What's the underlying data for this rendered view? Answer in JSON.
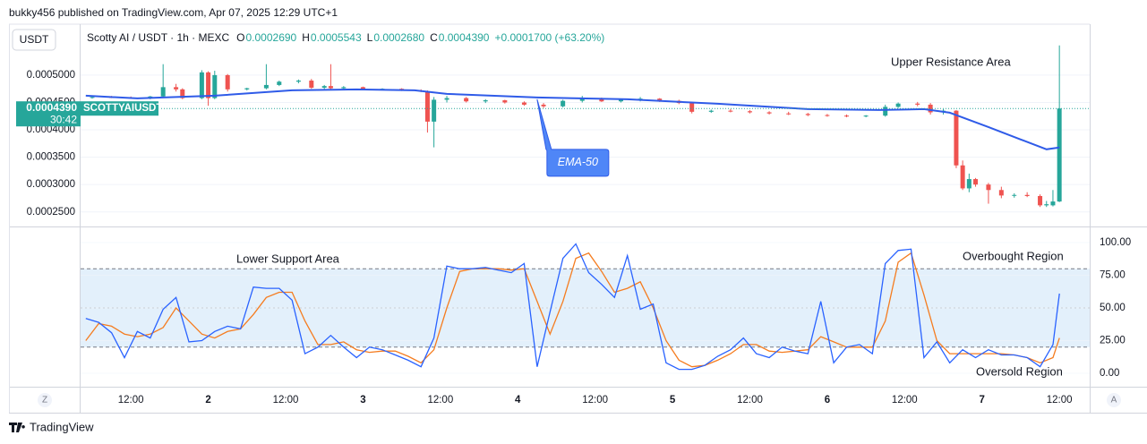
{
  "header": {
    "publisher": "bukky456 published on TradingView.com, Apr 07, 2025 12:29 UTC+1",
    "currency_button": "USDT",
    "logo": "TradingView",
    "left_button": "Z",
    "right_button": "A"
  },
  "chart_data": [
    {
      "type": "candlestick",
      "title": "Scotty AI / USDT · 1h · MEXC",
      "ohlc": [
        {
          "label": "O",
          "value": "0.0002690"
        },
        {
          "label": "H",
          "value": "0.0005543"
        },
        {
          "label": "L",
          "value": "0.0002680"
        },
        {
          "label": "C",
          "value": "0.0004390"
        }
      ],
      "change": "+0.0001700 (+63.20%)",
      "last_price_label": "0.0004390",
      "countdown": "30:42",
      "symbol_tag": "SCOTTYAIUSDT",
      "annotations": [
        "Upper Resistance Area"
      ],
      "up_color": "#26a69a",
      "down_color": "#ef5350",
      "xlim": [
        4.2,
        160.7
      ],
      "ylim": [
        0.000225,
        0.0005915
      ],
      "yticks": [
        {
          "value": 0.0005,
          "label": "0.0005000"
        },
        {
          "value": 0.00045,
          "label": "0.0004500"
        },
        {
          "value": 0.0004,
          "label": "0.0004000"
        },
        {
          "value": 0.00035,
          "label": "0.0003500"
        },
        {
          "value": 0.0003,
          "label": "0.0003000"
        },
        {
          "value": 0.00025,
          "label": "0.0002500"
        }
      ],
      "grid": true,
      "x": [
        6,
        9,
        12,
        15,
        17,
        19,
        20,
        23,
        24,
        25,
        27,
        30,
        33,
        35,
        38,
        40,
        42,
        43,
        45,
        48,
        51,
        54,
        57,
        58,
        59,
        61,
        64,
        67,
        70,
        73,
        76,
        79,
        82,
        85,
        88,
        91,
        94,
        97,
        99,
        102,
        105,
        108,
        111,
        114,
        117,
        120,
        123,
        126,
        129,
        131,
        134,
        136,
        138,
        140,
        141,
        142,
        143,
        145,
        147,
        149,
        151,
        153,
        154,
        155,
        156
      ],
      "open": [
        0.000459,
        0.00046,
        0.000459,
        0.000458,
        0.000461,
        0.000478,
        0.000474,
        0.000458,
        0.000505,
        0.000458,
        0.0005,
        0.000474,
        0.000476,
        0.000482,
        0.000488,
        0.00049,
        0.000477,
        0.00048,
        0.000476,
        0.000478,
        0.000474,
        0.000475,
        0.000472,
        0.00047,
        0.000415,
        0.000455,
        0.000458,
        0.000452,
        0.000454,
        0.00045,
        0.000446,
        0.000443,
        0.000453,
        0.000457,
        0.000452,
        0.000455,
        0.000457,
        0.000453,
        0.000449,
        0.000433,
        0.000435,
        0.000434,
        0.000432,
        0.00043,
        0.000429,
        0.000427,
        0.000426,
        0.000425,
        0.000426,
        0.000442,
        0.000448,
        0.000446,
        0.000432,
        0.000435,
        0.000335,
        0.000293,
        0.00031,
        0.0003,
        0.00029,
        0.00028,
        0.000281,
        0.000279,
        0.000262,
        0.000262,
        0.000269
      ],
      "high": [
        0.000461,
        0.000462,
        0.000461,
        0.000462,
        0.00052,
        0.000484,
        0.000476,
        0.000509,
        0.000507,
        0.000508,
        0.000502,
        0.000477,
        0.00052,
        0.00049,
        0.000492,
        0.000493,
        0.000482,
        0.00052,
        0.00048,
        0.000479,
        0.000476,
        0.000476,
        0.000474,
        0.000472,
        0.00046,
        0.000462,
        0.00046,
        0.000456,
        0.000455,
        0.000452,
        0.000449,
        0.000455,
        0.000462,
        0.000459,
        0.000456,
        0.00046,
        0.000458,
        0.000455,
        0.00045,
        0.000437,
        0.000438,
        0.000436,
        0.000434,
        0.000433,
        0.000431,
        0.000429,
        0.000428,
        0.000427,
        0.000446,
        0.00045,
        0.000451,
        0.000449,
        0.000438,
        0.000436,
        0.000344,
        0.00032,
        0.000312,
        0.000303,
        0.000296,
        0.000284,
        0.000286,
        0.000282,
        0.00027,
        0.00029,
        0.0005543
      ],
      "low": [
        0.000457,
        0.000458,
        0.000457,
        0.000456,
        0.000459,
        0.00047,
        0.000456,
        0.000456,
        0.000444,
        0.000456,
        0.00047,
        0.000472,
        0.000474,
        0.00048,
        0.000485,
        0.000475,
        0.000474,
        0.000472,
        0.000473,
        0.000473,
        0.000472,
        0.000471,
        0.000469,
        0.000395,
        0.000368,
        0.00045,
        0.00045,
        0.000449,
        0.000448,
        0.000444,
        0.00044,
        0.000441,
        0.00045,
        0.000451,
        0.00045,
        0.000452,
        0.000451,
        0.000447,
        0.00043,
        0.000431,
        0.000432,
        0.00043,
        0.000428,
        0.000427,
        0.000425,
        0.000424,
        0.000423,
        0.000423,
        0.000424,
        0.00044,
        0.000443,
        0.000428,
        0.000428,
        0.00033,
        0.00029,
        0.000286,
        0.000296,
        0.000265,
        0.000275,
        0.000276,
        0.000277,
        0.000259,
        0.000259,
        0.00026,
        0.000268
      ],
      "close": [
        0.00046,
        0.000459,
        0.000458,
        0.000461,
        0.000478,
        0.000474,
        0.000458,
        0.000505,
        0.000458,
        0.0005,
        0.000474,
        0.000476,
        0.000482,
        0.000488,
        0.00049,
        0.000477,
        0.00048,
        0.000476,
        0.000478,
        0.000474,
        0.000475,
        0.000472,
        0.00047,
        0.000415,
        0.000455,
        0.000458,
        0.000452,
        0.000454,
        0.00045,
        0.000446,
        0.000443,
        0.000453,
        0.000457,
        0.000452,
        0.000455,
        0.000457,
        0.000453,
        0.000449,
        0.000433,
        0.000435,
        0.000434,
        0.000432,
        0.00043,
        0.000429,
        0.000427,
        0.000426,
        0.000425,
        0.000426,
        0.000442,
        0.000448,
        0.000446,
        0.000432,
        0.000435,
        0.000335,
        0.000293,
        0.00031,
        0.0003,
        0.00029,
        0.00028,
        0.000281,
        0.000279,
        0.000262,
        0.000264,
        0.000269,
        0.000439
      ],
      "series": [
        {
          "name": "EMA-50",
          "color": "#2f5be8",
          "x": [
            5,
            13,
            25,
            37,
            47,
            56,
            61,
            75,
            89,
            103,
            117,
            128,
            135,
            139,
            145,
            150,
            154,
            156
          ],
          "values": [
            0.0004624,
            0.0004575,
            0.0004624,
            0.0004722,
            0.0004739,
            0.0004722,
            0.0004657,
            0.0004592,
            0.0004559,
            0.0004477,
            0.0004379,
            0.0004363,
            0.0004379,
            0.0004314,
            0.0004052,
            0.0003824,
            0.0003644,
            0.0003676
          ]
        }
      ]
    },
    {
      "type": "line",
      "annotations": [
        "Lower Support Area",
        "Overbought Region",
        "Oversold Region"
      ],
      "xlim": [
        4.2,
        160.7
      ],
      "ylim": [
        -10.3,
        111
      ],
      "yticks": [
        {
          "value": 100,
          "label": "100.00"
        },
        {
          "value": 75,
          "label": "75.00"
        },
        {
          "value": 50,
          "label": "50.00"
        },
        {
          "value": 25,
          "label": "25.00"
        },
        {
          "value": 0,
          "label": "0.00"
        }
      ],
      "xticks": [
        {
          "value": 12,
          "label": "12:00"
        },
        {
          "value": 24,
          "label": "2"
        },
        {
          "value": 36,
          "label": "12:00"
        },
        {
          "value": 48,
          "label": "3"
        },
        {
          "value": 60,
          "label": "12:00"
        },
        {
          "value": 72,
          "label": "4"
        },
        {
          "value": 84,
          "label": "12:00"
        },
        {
          "value": 96,
          "label": "5"
        },
        {
          "value": 108,
          "label": "12:00"
        },
        {
          "value": 120,
          "label": "6"
        },
        {
          "value": 132,
          "label": "12:00"
        },
        {
          "value": 144,
          "label": "7"
        },
        {
          "value": 156,
          "label": "12:00"
        }
      ],
      "band": [
        20,
        80
      ],
      "band_color": "#e3f0fb",
      "midline": 50,
      "grid": true,
      "x": [
        5,
        7,
        9,
        11,
        13,
        15,
        17,
        19,
        21,
        23,
        25,
        27,
        29,
        31,
        33,
        35,
        37,
        39,
        41,
        43,
        45,
        47,
        49,
        51,
        53,
        55,
        57,
        59,
        61,
        63,
        65,
        67,
        69,
        71,
        73,
        75,
        77,
        79,
        81,
        83,
        85,
        87,
        89,
        91,
        93,
        95,
        97,
        99,
        101,
        103,
        105,
        107,
        109,
        111,
        113,
        115,
        117,
        119,
        121,
        123,
        125,
        127,
        129,
        131,
        133,
        135,
        137,
        139,
        141,
        143,
        145,
        147,
        149,
        151,
        153,
        155,
        156
      ],
      "series": [
        {
          "color": "#2962ff",
          "values": [
            42,
            39,
            31,
            12,
            32,
            27,
            49,
            58,
            24,
            25,
            32,
            36,
            34,
            66,
            65,
            65,
            56,
            15,
            20,
            29,
            20,
            12,
            20,
            18,
            14,
            10,
            5,
            27,
            82,
            80,
            80,
            81,
            79,
            77,
            84,
            5,
            47,
            88,
            99,
            77,
            68,
            58,
            90,
            49,
            53,
            8,
            3,
            3,
            6,
            13,
            18,
            27,
            15,
            12,
            20,
            17,
            15,
            55,
            8,
            20,
            22,
            15,
            84,
            94,
            95,
            12,
            24,
            8,
            18,
            12,
            18,
            14,
            14,
            12,
            5,
            22,
            61
          ]
        },
        {
          "color": "#f57c1f",
          "values": [
            25,
            38,
            36,
            30,
            28,
            30,
            35,
            50,
            40,
            30,
            27,
            32,
            34,
            45,
            58,
            62,
            62,
            40,
            22,
            22,
            24,
            18,
            16,
            17,
            17,
            13,
            8,
            18,
            50,
            78,
            80,
            80,
            80,
            79,
            80,
            55,
            30,
            55,
            88,
            92,
            78,
            62,
            65,
            70,
            50,
            25,
            10,
            5,
            6,
            10,
            15,
            22,
            22,
            17,
            16,
            17,
            18,
            28,
            24,
            20,
            20,
            20,
            40,
            85,
            92,
            60,
            25,
            15,
            15,
            15,
            15,
            15,
            14,
            12,
            8,
            12,
            27
          ]
        }
      ]
    }
  ]
}
